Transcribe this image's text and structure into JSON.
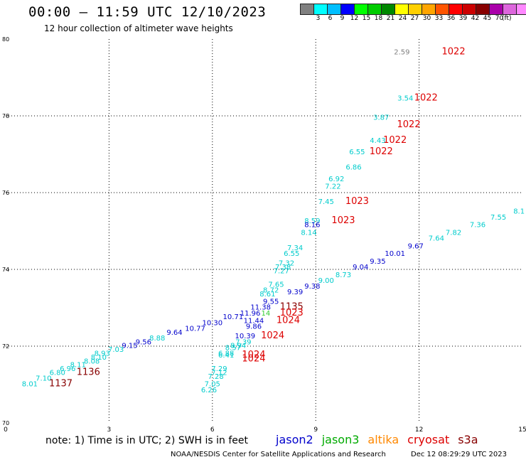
{
  "header": {
    "title": "00:00 – 11:59 UTC 12/10/2023",
    "subtitle": "12 hour collection of altimeter wave heights"
  },
  "scale": {
    "colors": [
      "#808080",
      "#00ffff",
      "#00bfff",
      "#0000ff",
      "#00ff00",
      "#00cc00",
      "#008800",
      "#ffff00",
      "#ffd000",
      "#ffa500",
      "#ff5500",
      "#ff0000",
      "#cc0000",
      "#880000",
      "#aa00aa",
      "#dd66dd",
      "#ff88ff",
      "#000000"
    ],
    "labels": [
      "",
      "3",
      "6",
      "9",
      "12",
      "15",
      "18",
      "21",
      "24",
      "27",
      "30",
      "33",
      "36",
      "39",
      "42",
      "45",
      "70"
    ],
    "unit": "(ft)"
  },
  "note": "note: 1) Time is in UTC; 2) SWH is in feet",
  "legend": [
    {
      "label": "jason2",
      "color": "#0000cc"
    },
    {
      "label": "jason3",
      "color": "#00aa00"
    },
    {
      "label": "altika",
      "color": "#ff8800"
    },
    {
      "label": "cryosat",
      "color": "#dd0000"
    },
    {
      "label": "s3a",
      "color": "#880000"
    }
  ],
  "credit": "NOAA/NESDIS Center for Satellite Applications and Research",
  "timestamp": "Dec 12 08:29:29 UTC 2023",
  "chart_data": {
    "type": "scatter",
    "x_ticks": [
      "0",
      "3",
      "6",
      "9",
      "12",
      "15"
    ],
    "y_ticks": [
      "70",
      "72",
      "74",
      "76",
      "78",
      "80"
    ],
    "x_range": [
      0,
      15
    ],
    "y_range": [
      70,
      80
    ],
    "grid": true,
    "points": [
      {
        "x": 11.5,
        "y": 79.6,
        "label": "2.59",
        "color": "#808080"
      },
      {
        "x": 13.0,
        "y": 79.6,
        "label": "1022",
        "color": "#dd0000"
      },
      {
        "x": 11.6,
        "y": 78.4,
        "label": "3.54",
        "color": "#00cccc"
      },
      {
        "x": 12.2,
        "y": 78.4,
        "label": "1022",
        "color": "#dd0000"
      },
      {
        "x": 10.9,
        "y": 77.9,
        "label": "3.87",
        "color": "#00cccc"
      },
      {
        "x": 11.7,
        "y": 77.7,
        "label": "1022",
        "color": "#dd0000"
      },
      {
        "x": 10.8,
        "y": 77.3,
        "label": "4.43",
        "color": "#00cccc"
      },
      {
        "x": 11.3,
        "y": 77.3,
        "label": "1022",
        "color": "#dd0000"
      },
      {
        "x": 10.2,
        "y": 77.0,
        "label": "6.55",
        "color": "#00cccc"
      },
      {
        "x": 10.9,
        "y": 77.0,
        "label": "1022",
        "color": "#dd0000"
      },
      {
        "x": 10.1,
        "y": 76.6,
        "label": "6.86",
        "color": "#00cccc"
      },
      {
        "x": 9.6,
        "y": 76.3,
        "label": "6.92",
        "color": "#00cccc"
      },
      {
        "x": 9.5,
        "y": 76.1,
        "label": "7.22",
        "color": "#00cccc"
      },
      {
        "x": 9.3,
        "y": 75.7,
        "label": "7.45",
        "color": "#00cccc"
      },
      {
        "x": 10.2,
        "y": 75.7,
        "label": "1023",
        "color": "#dd0000"
      },
      {
        "x": 8.9,
        "y": 75.2,
        "label": "8.59",
        "color": "#00cccc"
      },
      {
        "x": 8.9,
        "y": 75.1,
        "label": "8.16",
        "color": "#0000cc"
      },
      {
        "x": 8.8,
        "y": 74.9,
        "label": "8.14",
        "color": "#00cccc"
      },
      {
        "x": 9.8,
        "y": 75.2,
        "label": "1023",
        "color": "#dd0000"
      },
      {
        "x": 8.4,
        "y": 74.5,
        "label": "7.34",
        "color": "#00cccc"
      },
      {
        "x": 8.3,
        "y": 74.35,
        "label": "6.55",
        "color": "#00cccc"
      },
      {
        "x": 8.15,
        "y": 74.1,
        "label": "7.32",
        "color": "#00cccc"
      },
      {
        "x": 8.05,
        "y": 74.0,
        "label": "7.38",
        "color": "#00cccc"
      },
      {
        "x": 8.0,
        "y": 73.9,
        "label": "7.27",
        "color": "#00cccc"
      },
      {
        "x": 7.85,
        "y": 73.55,
        "label": "7.65",
        "color": "#00cccc"
      },
      {
        "x": 7.7,
        "y": 73.4,
        "label": "8.72",
        "color": "#00cccc"
      },
      {
        "x": 7.6,
        "y": 73.3,
        "label": "8.61",
        "color": "#00cccc"
      },
      {
        "x": 8.4,
        "y": 73.35,
        "label": "9.39",
        "color": "#0000cc"
      },
      {
        "x": 8.9,
        "y": 73.5,
        "label": "9.38",
        "color": "#0000cc"
      },
      {
        "x": 7.7,
        "y": 73.1,
        "label": "9.55",
        "color": "#0000cc"
      },
      {
        "x": 7.4,
        "y": 72.95,
        "label": "11.38",
        "color": "#0000cc"
      },
      {
        "x": 8.3,
        "y": 72.95,
        "label": "1135",
        "color": "#880000"
      },
      {
        "x": 7.1,
        "y": 72.8,
        "label": "11.96",
        "color": "#0000cc"
      },
      {
        "x": 7.55,
        "y": 72.8,
        "label": "14",
        "color": "#33cc33"
      },
      {
        "x": 8.3,
        "y": 72.8,
        "label": "1023",
        "color": "#dd0000"
      },
      {
        "x": 6.6,
        "y": 72.7,
        "label": "10.71",
        "color": "#0000cc"
      },
      {
        "x": 7.2,
        "y": 72.6,
        "label": "11.44",
        "color": "#0000cc"
      },
      {
        "x": 8.2,
        "y": 72.6,
        "label": "1024",
        "color": "#dd0000"
      },
      {
        "x": 6.0,
        "y": 72.55,
        "label": "10.30",
        "color": "#0000cc"
      },
      {
        "x": 7.2,
        "y": 72.45,
        "label": "9.86",
        "color": "#0000cc"
      },
      {
        "x": 5.5,
        "y": 72.4,
        "label": "10.77",
        "color": "#0000cc"
      },
      {
        "x": 4.9,
        "y": 72.3,
        "label": "9.64",
        "color": "#0000cc"
      },
      {
        "x": 6.95,
        "y": 72.2,
        "label": "10.39",
        "color": "#0000cc"
      },
      {
        "x": 7.75,
        "y": 72.2,
        "label": "1024",
        "color": "#dd0000"
      },
      {
        "x": 4.4,
        "y": 72.15,
        "label": "8.88",
        "color": "#00cccc"
      },
      {
        "x": 6.9,
        "y": 72.05,
        "label": "7.39",
        "color": "#00cccc"
      },
      {
        "x": 4.0,
        "y": 72.05,
        "label": "9.56",
        "color": "#0000cc"
      },
      {
        "x": 6.75,
        "y": 71.95,
        "label": "8.94",
        "color": "#00cccc"
      },
      {
        "x": 3.6,
        "y": 71.95,
        "label": "9.15",
        "color": "#0000cc"
      },
      {
        "x": 6.6,
        "y": 71.9,
        "label": "8.57",
        "color": "#00cccc"
      },
      {
        "x": 3.2,
        "y": 71.85,
        "label": "7.03",
        "color": "#00cccc"
      },
      {
        "x": 2.8,
        "y": 71.75,
        "label": "8.93",
        "color": "#00cccc"
      },
      {
        "x": 6.4,
        "y": 71.75,
        "label": "6.88",
        "color": "#00cccc"
      },
      {
        "x": 6.4,
        "y": 71.7,
        "label": "6.41",
        "color": "#00cccc"
      },
      {
        "x": 7.2,
        "y": 71.7,
        "label": "1024",
        "color": "#dd0000"
      },
      {
        "x": 7.2,
        "y": 71.6,
        "label": "1024",
        "color": "#dd0000"
      },
      {
        "x": 2.7,
        "y": 71.65,
        "label": "8.10",
        "color": "#00cccc"
      },
      {
        "x": 2.5,
        "y": 71.55,
        "label": "8.08",
        "color": "#00cccc"
      },
      {
        "x": 2.1,
        "y": 71.45,
        "label": "8.11",
        "color": "#00cccc"
      },
      {
        "x": 1.8,
        "y": 71.35,
        "label": "6.96",
        "color": "#00cccc"
      },
      {
        "x": 2.4,
        "y": 71.25,
        "label": "1136",
        "color": "#880000"
      },
      {
        "x": 1.5,
        "y": 71.25,
        "label": "6.80",
        "color": "#00cccc"
      },
      {
        "x": 6.2,
        "y": 71.35,
        "label": "7.29",
        "color": "#00cccc"
      },
      {
        "x": 6.2,
        "y": 71.25,
        "label": "7.12",
        "color": "#00cccc"
      },
      {
        "x": 6.1,
        "y": 71.15,
        "label": "7.28",
        "color": "#00cccc"
      },
      {
        "x": 6.0,
        "y": 70.95,
        "label": "7.05",
        "color": "#00cccc"
      },
      {
        "x": 5.9,
        "y": 70.8,
        "label": "6.26",
        "color": "#00cccc"
      },
      {
        "x": 1.1,
        "y": 71.1,
        "label": "7.10",
        "color": "#00cccc"
      },
      {
        "x": 0.7,
        "y": 70.95,
        "label": "8.01",
        "color": "#00cccc"
      },
      {
        "x": 1.6,
        "y": 70.95,
        "label": "1137",
        "color": "#880000"
      },
      {
        "x": 9.3,
        "y": 73.65,
        "label": "9.00",
        "color": "#00cccc"
      },
      {
        "x": 9.8,
        "y": 73.8,
        "label": "8.73",
        "color": "#00cccc"
      },
      {
        "x": 10.3,
        "y": 74.0,
        "label": "9.04",
        "color": "#0000cc"
      },
      {
        "x": 10.8,
        "y": 74.15,
        "label": "9.35",
        "color": "#0000cc"
      },
      {
        "x": 11.3,
        "y": 74.35,
        "label": "10.01",
        "color": "#0000cc"
      },
      {
        "x": 11.9,
        "y": 74.55,
        "label": "9.67",
        "color": "#0000cc"
      },
      {
        "x": 12.5,
        "y": 74.75,
        "label": "7.64",
        "color": "#00cccc"
      },
      {
        "x": 13.0,
        "y": 74.9,
        "label": "7.82",
        "color": "#00cccc"
      },
      {
        "x": 13.7,
        "y": 75.1,
        "label": "7.36",
        "color": "#00cccc"
      },
      {
        "x": 14.3,
        "y": 75.3,
        "label": "7.55",
        "color": "#00cccc"
      },
      {
        "x": 14.9,
        "y": 75.45,
        "label": "8.1",
        "color": "#00cccc"
      }
    ]
  }
}
